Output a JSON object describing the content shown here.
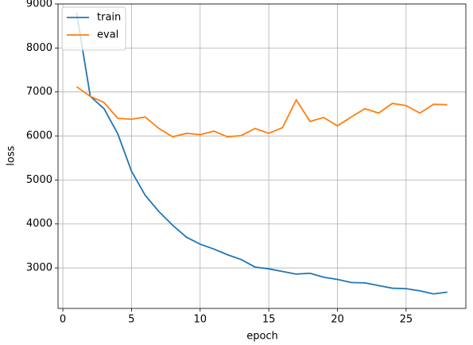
{
  "chart_data": {
    "type": "line",
    "xlabel": "epoch",
    "ylabel": "loss",
    "x": [
      1,
      2,
      3,
      4,
      5,
      6,
      7,
      8,
      9,
      10,
      11,
      12,
      13,
      14,
      15,
      16,
      17,
      18,
      19,
      20,
      21,
      22,
      23,
      24,
      25,
      26,
      27,
      28
    ],
    "series": [
      {
        "name": "train",
        "color": "#1f77b4",
        "values": [
          8800,
          6900,
          6620,
          6050,
          5200,
          4650,
          4280,
          3970,
          3700,
          3540,
          3430,
          3300,
          3190,
          3020,
          2980,
          2920,
          2860,
          2880,
          2790,
          2740,
          2670,
          2660,
          2600,
          2540,
          2530,
          2480,
          2410,
          2450
        ]
      },
      {
        "name": "eval",
        "color": "#ff7f0e",
        "values": [
          7120,
          6900,
          6760,
          6400,
          6380,
          6430,
          6170,
          5980,
          6060,
          6030,
          6110,
          5980,
          6010,
          6170,
          6060,
          6190,
          6820,
          6330,
          6420,
          6230,
          6430,
          6620,
          6520,
          6740,
          6690,
          6520,
          6720,
          6710
        ]
      }
    ],
    "xlim": [
      -0.35,
      29.35
    ],
    "xticks": [
      0,
      5,
      10,
      15,
      20,
      25
    ],
    "ylim": [
      2080,
      9000
    ],
    "yticks": [
      3000,
      4000,
      5000,
      6000,
      7000,
      8000,
      9000
    ],
    "grid": true,
    "legend": "upper left"
  }
}
